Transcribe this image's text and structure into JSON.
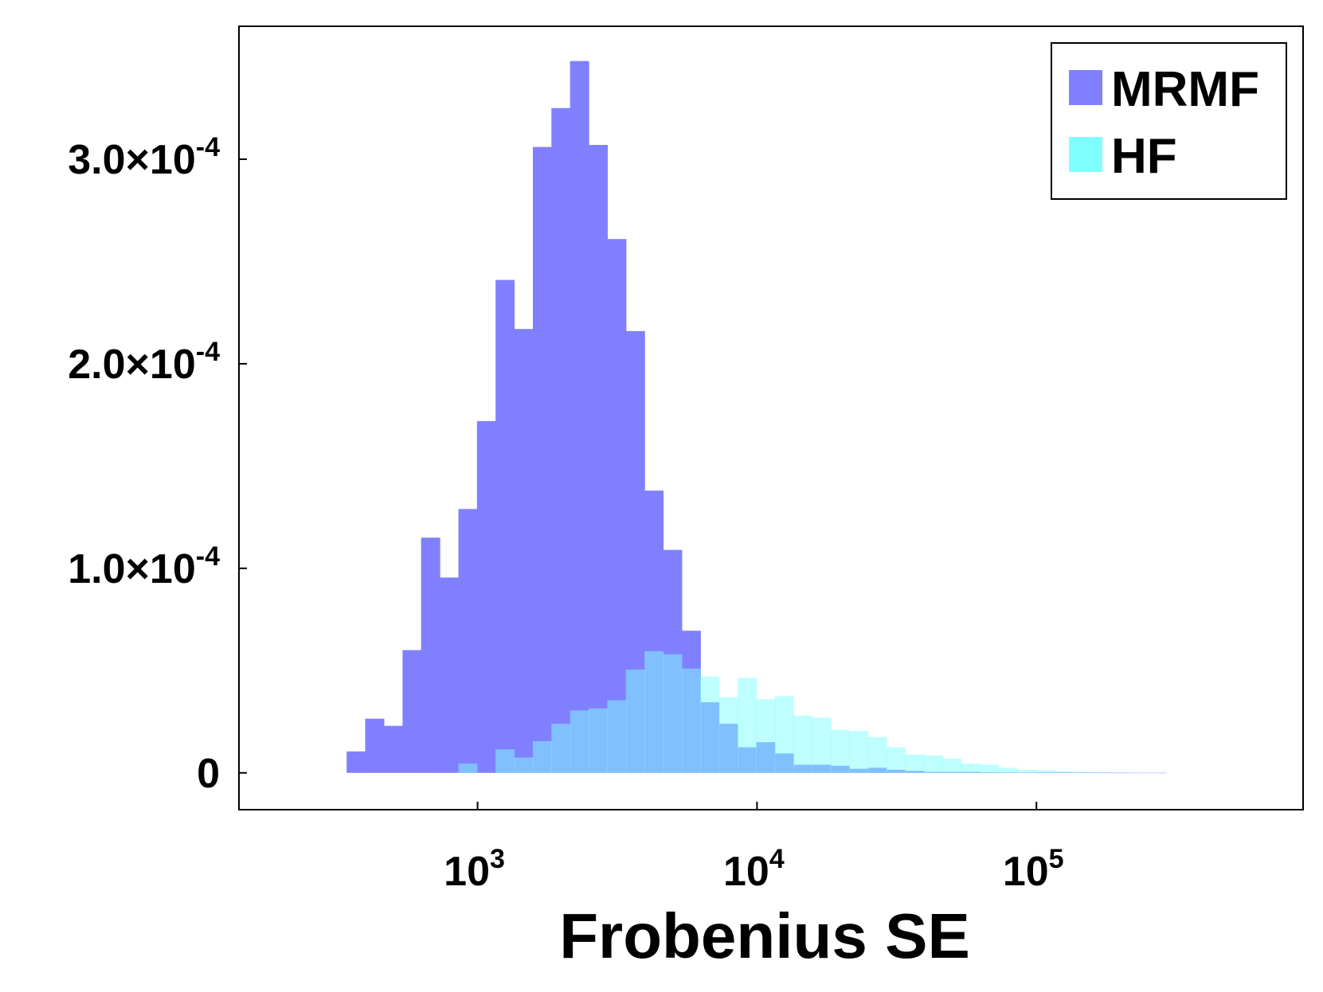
{
  "chart_data": {
    "type": "bar",
    "x_scale": "log",
    "xlabel": "Frobenius SE",
    "ylabel": "",
    "title": "",
    "xlim": [
      140,
      900000
    ],
    "ylim": [
      -1.8e-05,
      0.000365
    ],
    "grid": false,
    "legend_position": "top-right",
    "bin_edges": [
      340,
      396,
      462,
      539,
      628,
      732,
      854,
      995,
      1160,
      1352,
      1577,
      1838,
      2143,
      2498,
      2912,
      3395,
      3958,
      4614,
      5379,
      6271,
      7310,
      8522,
      9935,
      11582,
      13502,
      15740,
      18349,
      21391,
      24937,
      29071,
      33891,
      39509,
      46059,
      53694,
      62596,
      72973,
      85071,
      99174,
      115615,
      134782,
      157126,
      183175,
      213542,
      248943,
      290214
    ],
    "series": [
      {
        "name": "MRMF",
        "color": "#8080ff",
        "values": [
          1.05e-05,
          2.65e-05,
          2.3e-05,
          6e-05,
          0.000115,
          9.55e-05,
          0.000129,
          0.000172,
          0.000241,
          0.000217,
          0.000306,
          0.000325,
          0.000348,
          0.000307,
          0.000261,
          0.000216,
          0.000138,
          0.000109,
          6.95e-05,
          3.45e-05,
          2.4e-05,
          1.25e-05,
          1.5e-05,
          9.5e-06,
          4e-06,
          4e-06,
          3.5e-06,
          2e-06,
          2.5e-06,
          1.5e-06,
          1e-06,
          5e-07,
          5e-07,
          5e-07,
          3e-07,
          2e-07,
          2e-07,
          1e-07,
          1e-07,
          1e-07,
          1e-07,
          5e-08,
          5e-08,
          5e-08
        ]
      },
      {
        "name": "HF",
        "color": "#80ffff",
        "values": [
          0,
          0,
          0,
          0,
          0,
          0,
          4.5e-06,
          0,
          1.15e-05,
          7.5e-06,
          1.55e-05,
          2.4e-05,
          3.05e-05,
          3.15e-05,
          3.55e-05,
          5.05e-05,
          5.95e-05,
          5.8e-05,
          5.1e-05,
          4.7e-05,
          3.7e-05,
          4.65e-05,
          3.6e-05,
          3.75e-05,
          2.8e-05,
          2.7e-05,
          2.1e-05,
          2.05e-05,
          1.75e-05,
          1.25e-05,
          9e-06,
          8.5e-06,
          7e-06,
          4.5e-06,
          4e-06,
          2.5e-06,
          1.5e-06,
          1.2e-06,
          8e-07,
          5e-07,
          3e-07,
          2e-07,
          1e-07,
          5e-08
        ]
      }
    ],
    "x_ticks": [
      {
        "value": 1000,
        "base": "10",
        "exp": "3"
      },
      {
        "value": 10000,
        "base": "10",
        "exp": "4"
      },
      {
        "value": 100000,
        "base": "10",
        "exp": "5"
      }
    ],
    "y_ticks": [
      {
        "value": 0,
        "mant": "0",
        "exp": ""
      },
      {
        "value": 0.0001,
        "mant": "1.0×10",
        "exp": "-4"
      },
      {
        "value": 0.0002,
        "mant": "2.0×10",
        "exp": "-4"
      },
      {
        "value": 0.0003,
        "mant": "3.0×10",
        "exp": "-4"
      }
    ]
  }
}
